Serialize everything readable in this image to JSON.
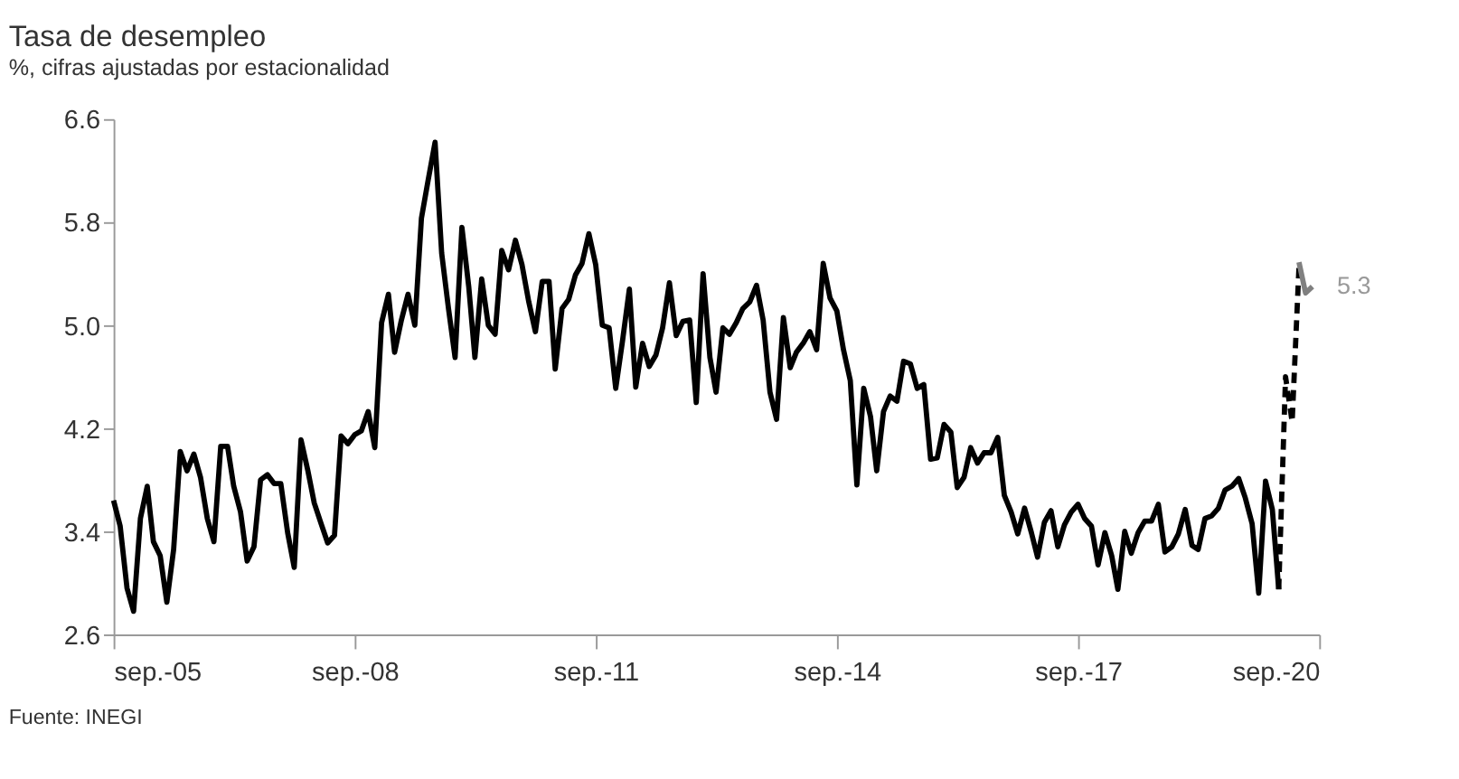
{
  "chart_data": {
    "type": "line",
    "title": "Tasa de desempleo",
    "subtitle": "%, cifras ajustadas por estacionalidad",
    "xlim": [
      "2005-09",
      "2020-09"
    ],
    "xticks": [
      {
        "value": "2005-09",
        "label": "sep.-05"
      },
      {
        "value": "2008-09",
        "label": "sep.-08"
      },
      {
        "value": "2011-09",
        "label": "sep.-11"
      },
      {
        "value": "2014-09",
        "label": "sep.-14"
      },
      {
        "value": "2017-09",
        "label": "sep.-17"
      },
      {
        "value": "2020-09",
        "label": "sep.-20"
      }
    ],
    "ylim": [
      2.6,
      6.6
    ],
    "yticks": [
      {
        "value": 2.6,
        "label": "2.6"
      },
      {
        "value": 3.4,
        "label": "3.4"
      },
      {
        "value": 4.2,
        "label": "4.2"
      },
      {
        "value": 5.0,
        "label": "5.0"
      },
      {
        "value": 5.8,
        "label": "5.8"
      },
      {
        "value": 6.6,
        "label": "6.6"
      }
    ],
    "grid": false,
    "marker": "none",
    "annotations": [
      "Fuente: INEGI",
      {
        "text": "5.3",
        "x": "2020-08",
        "y": 5.3
      }
    ],
    "series": [
      {
        "color": "#000000",
        "line_style": "solid",
        "x": [
          "2005-09",
          "2005-10",
          "2005-11",
          "2005-12",
          "2006-01",
          "2006-02",
          "2006-03",
          "2006-04",
          "2006-05",
          "2006-06",
          "2006-07",
          "2006-08",
          "2006-09",
          "2006-10",
          "2006-11",
          "2006-12",
          "2007-01",
          "2007-02",
          "2007-03",
          "2007-04",
          "2007-05",
          "2007-06",
          "2007-07",
          "2007-08",
          "2007-09",
          "2007-10",
          "2007-11",
          "2007-12",
          "2008-01",
          "2008-02",
          "2008-03",
          "2008-04",
          "2008-05",
          "2008-06",
          "2008-07",
          "2008-08",
          "2008-09",
          "2008-10",
          "2008-11",
          "2008-12",
          "2009-01",
          "2009-02",
          "2009-03",
          "2009-04",
          "2009-05",
          "2009-06",
          "2009-07",
          "2009-08",
          "2009-09",
          "2009-10",
          "2009-11",
          "2009-12",
          "2010-01",
          "2010-02",
          "2010-03",
          "2010-04",
          "2010-05",
          "2010-06",
          "2010-07",
          "2010-08",
          "2010-09",
          "2010-10",
          "2010-11",
          "2010-12",
          "2011-01",
          "2011-02",
          "2011-03",
          "2011-04",
          "2011-05",
          "2011-06",
          "2011-07",
          "2011-08",
          "2011-09",
          "2011-10",
          "2011-11",
          "2011-12",
          "2012-01",
          "2012-02",
          "2012-03",
          "2012-04",
          "2012-05",
          "2012-06",
          "2012-07",
          "2012-08",
          "2012-09",
          "2012-10",
          "2012-11",
          "2012-12",
          "2013-01",
          "2013-02",
          "2013-03",
          "2013-04",
          "2013-05",
          "2013-06",
          "2013-07",
          "2013-08",
          "2013-09",
          "2013-10",
          "2013-11",
          "2013-12",
          "2014-01",
          "2014-02",
          "2014-03",
          "2014-04",
          "2014-05",
          "2014-06",
          "2014-07",
          "2014-08",
          "2014-09",
          "2014-10",
          "2014-11",
          "2014-12",
          "2015-01",
          "2015-02",
          "2015-03",
          "2015-04",
          "2015-05",
          "2015-06",
          "2015-07",
          "2015-08",
          "2015-09",
          "2015-10",
          "2015-11",
          "2015-12",
          "2016-01",
          "2016-02",
          "2016-03",
          "2016-04",
          "2016-05",
          "2016-06",
          "2016-07",
          "2016-08",
          "2016-09",
          "2016-10",
          "2016-11",
          "2016-12",
          "2017-01",
          "2017-02",
          "2017-03",
          "2017-04",
          "2017-05",
          "2017-06",
          "2017-07",
          "2017-08",
          "2017-09",
          "2017-10",
          "2017-11",
          "2017-12",
          "2018-01",
          "2018-02",
          "2018-03",
          "2018-04",
          "2018-05",
          "2018-06",
          "2018-07",
          "2018-08",
          "2018-09",
          "2018-10",
          "2018-11",
          "2018-12",
          "2019-01",
          "2019-02",
          "2019-03",
          "2019-04",
          "2019-05",
          "2019-06",
          "2019-07",
          "2019-08",
          "2019-09",
          "2019-10",
          "2019-11",
          "2019-12",
          "2020-01",
          "2020-02",
          "2020-03"
        ],
        "values": [
          3.64,
          3.44,
          2.96,
          2.78,
          3.5,
          3.75,
          3.32,
          3.21,
          2.85,
          3.26,
          4.02,
          3.87,
          4.0,
          3.82,
          3.5,
          3.32,
          4.06,
          4.06,
          3.75,
          3.55,
          3.17,
          3.28,
          3.8,
          3.84,
          3.77,
          3.77,
          3.39,
          3.12,
          4.11,
          3.87,
          3.62,
          3.46,
          3.31,
          3.37,
          4.14,
          4.08,
          4.15,
          4.18,
          4.33,
          4.05,
          5.02,
          5.24,
          4.79,
          5.04,
          5.24,
          5.0,
          5.83,
          6.13,
          6.42,
          5.56,
          5.13,
          4.75,
          5.76,
          5.3,
          4.75,
          5.36,
          5.0,
          4.93,
          5.58,
          5.43,
          5.66,
          5.47,
          5.18,
          4.95,
          5.34,
          5.34,
          4.66,
          5.13,
          5.2,
          5.39,
          5.48,
          5.71,
          5.47,
          5.0,
          4.98,
          4.51,
          4.88,
          5.28,
          4.52,
          4.86,
          4.68,
          4.77,
          4.98,
          5.33,
          4.92,
          5.03,
          5.04,
          4.4,
          5.4,
          4.75,
          4.48,
          4.98,
          4.93,
          5.02,
          5.13,
          5.18,
          5.31,
          5.04,
          4.48,
          4.27,
          5.06,
          4.67,
          4.79,
          4.86,
          4.95,
          4.81,
          5.48,
          5.21,
          5.11,
          4.81,
          4.57,
          3.76,
          4.51,
          4.29,
          3.87,
          4.33,
          4.45,
          4.41,
          4.72,
          4.7,
          4.51,
          4.54,
          3.96,
          3.97,
          4.23,
          4.17,
          3.74,
          3.82,
          4.05,
          3.93,
          4.01,
          4.01,
          4.13,
          3.68,
          3.55,
          3.38,
          3.58,
          3.39,
          3.2,
          3.47,
          3.56,
          3.28,
          3.45,
          3.55,
          3.61,
          3.5,
          3.44,
          3.14,
          3.39,
          3.21,
          2.95,
          3.4,
          3.23,
          3.39,
          3.48,
          3.48,
          3.61,
          3.24,
          3.28,
          3.38,
          3.57,
          3.29,
          3.26,
          3.5,
          3.52,
          3.58,
          3.72,
          3.75,
          3.81,
          3.66,
          3.46,
          2.92,
          3.79,
          3.57,
          2.95
        ]
      },
      {
        "color": "#000000",
        "line_style": "dashed",
        "x": [
          "2020-03",
          "2020-04",
          "2020-05",
          "2020-06"
        ],
        "values": [
          2.95,
          4.6,
          4.25,
          5.45
        ]
      },
      {
        "color": "#808080",
        "line_style": "solid",
        "x": [
          "2020-06",
          "2020-07",
          "2020-08"
        ],
        "values": [
          5.49,
          5.25,
          5.3
        ]
      }
    ]
  }
}
